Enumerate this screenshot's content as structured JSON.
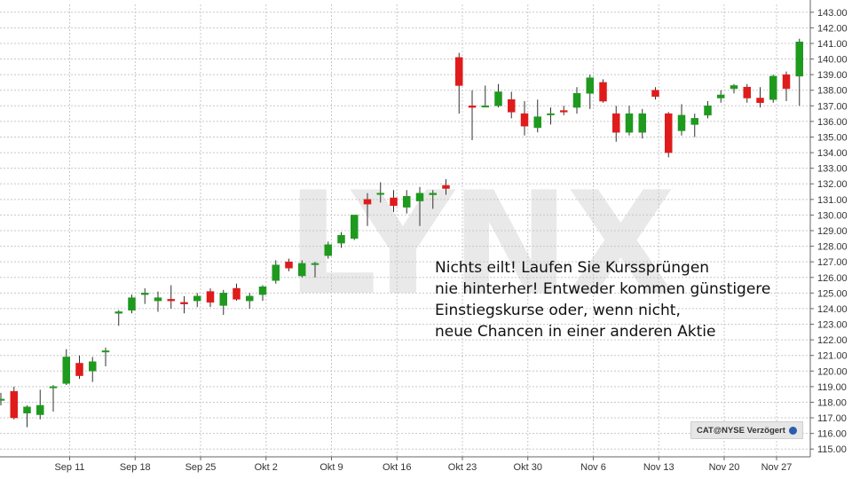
{
  "watermark": "LYNX",
  "annotation": {
    "lines": [
      "Nichts eilt! Laufen Sie Kurssprüngen",
      "nie hinterher! Entweder kommen günstigere",
      "Einstiegskurse oder, wenn nicht,",
      "neue Chancen in einer anderen Aktie"
    ]
  },
  "source_label": "CAT@NYSE Verzögert",
  "colors": {
    "up": "#1e9a1e",
    "down": "#e01b1b",
    "grid": "#c8c8c8",
    "axis": "#666666"
  },
  "chart_data": {
    "type": "candlestick",
    "ylim": [
      114.5,
      143.5
    ],
    "y_ticks": [
      "115.00",
      "116.00",
      "117.00",
      "118.00",
      "119.00",
      "120.00",
      "121.00",
      "122.00",
      "123.00",
      "124.00",
      "125.00",
      "126.00",
      "127.00",
      "128.00",
      "129.00",
      "130.00",
      "131.00",
      "132.00",
      "133.00",
      "134.00",
      "135.00",
      "136.00",
      "137.00",
      "138.00",
      "139.00",
      "140.00",
      "141.00",
      "142.00",
      "143.00"
    ],
    "x_ticks": [
      {
        "label": "Sep 11",
        "index": 2
      },
      {
        "label": "Sep 18",
        "index": 7
      },
      {
        "label": "Sep 25",
        "index": 12
      },
      {
        "label": "Okt 2",
        "index": 17
      },
      {
        "label": "Okt 9",
        "index": 22
      },
      {
        "label": "Okt 16",
        "index": 27
      },
      {
        "label": "Okt 23",
        "index": 32
      },
      {
        "label": "Okt 30",
        "index": 37
      },
      {
        "label": "Nov 6",
        "index": 42
      },
      {
        "label": "Nov 13",
        "index": 47
      },
      {
        "label": "Nov 20",
        "index": 52
      },
      {
        "label": "Nov 27",
        "index": 56
      }
    ],
    "candles": [
      {
        "o": 118.2,
        "h": 118.6,
        "l": 117.8,
        "c": 118.2
      },
      {
        "o": 118.7,
        "h": 119.0,
        "l": 116.9,
        "c": 117.0
      },
      {
        "o": 117.3,
        "h": 117.8,
        "l": 116.4,
        "c": 117.7
      },
      {
        "o": 117.2,
        "h": 118.8,
        "l": 116.9,
        "c": 117.8
      },
      {
        "o": 119.0,
        "h": 119.1,
        "l": 117.4,
        "c": 119.0
      },
      {
        "o": 119.2,
        "h": 121.4,
        "l": 119.1,
        "c": 120.9
      },
      {
        "o": 120.5,
        "h": 121.0,
        "l": 119.5,
        "c": 119.7
      },
      {
        "o": 120.0,
        "h": 120.9,
        "l": 119.3,
        "c": 120.6
      },
      {
        "o": 121.3,
        "h": 121.5,
        "l": 120.3,
        "c": 121.3
      },
      {
        "o": 123.7,
        "h": 123.9,
        "l": 122.9,
        "c": 123.8
      },
      {
        "o": 123.9,
        "h": 124.9,
        "l": 123.7,
        "c": 124.7
      },
      {
        "o": 124.9,
        "h": 125.3,
        "l": 124.3,
        "c": 125.0
      },
      {
        "o": 124.5,
        "h": 125.1,
        "l": 123.8,
        "c": 124.7
      },
      {
        "o": 124.6,
        "h": 125.5,
        "l": 124.0,
        "c": 124.5
      },
      {
        "o": 124.4,
        "h": 124.8,
        "l": 123.7,
        "c": 124.3
      },
      {
        "o": 124.5,
        "h": 125.0,
        "l": 124.1,
        "c": 124.8
      },
      {
        "o": 125.1,
        "h": 125.3,
        "l": 124.1,
        "c": 124.4
      },
      {
        "o": 124.2,
        "h": 125.2,
        "l": 123.6,
        "c": 125.0
      },
      {
        "o": 125.3,
        "h": 125.6,
        "l": 124.5,
        "c": 124.6
      },
      {
        "o": 124.5,
        "h": 125.0,
        "l": 124.0,
        "c": 124.8
      },
      {
        "o": 124.9,
        "h": 125.5,
        "l": 124.5,
        "c": 125.4
      },
      {
        "o": 125.8,
        "h": 127.1,
        "l": 125.6,
        "c": 126.8
      },
      {
        "o": 127.0,
        "h": 127.2,
        "l": 126.4,
        "c": 126.6
      },
      {
        "o": 126.1,
        "h": 127.1,
        "l": 126.0,
        "c": 126.9
      },
      {
        "o": 126.9,
        "h": 127.0,
        "l": 126.0,
        "c": 126.9
      },
      {
        "o": 127.4,
        "h": 128.3,
        "l": 127.2,
        "c": 128.1
      },
      {
        "o": 128.2,
        "h": 128.9,
        "l": 127.9,
        "c": 128.7
      },
      {
        "o": 128.5,
        "h": 130.0,
        "l": 128.4,
        "c": 130.0
      },
      {
        "o": 131.0,
        "h": 131.4,
        "l": 129.3,
        "c": 130.7
      },
      {
        "o": 131.4,
        "h": 132.1,
        "l": 130.8,
        "c": 131.4
      },
      {
        "o": 131.1,
        "h": 131.6,
        "l": 130.2,
        "c": 130.6
      },
      {
        "o": 130.5,
        "h": 131.6,
        "l": 130.1,
        "c": 131.2
      },
      {
        "o": 130.9,
        "h": 131.8,
        "l": 129.3,
        "c": 131.4
      },
      {
        "o": 131.3,
        "h": 131.6,
        "l": 130.4,
        "c": 131.4
      },
      {
        "o": 131.9,
        "h": 132.3,
        "l": 131.3,
        "c": 131.7
      },
      {
        "o": 140.1,
        "h": 140.4,
        "l": 136.5,
        "c": 138.3
      },
      {
        "o": 137.0,
        "h": 138.0,
        "l": 134.8,
        "c": 136.9
      },
      {
        "o": 137.0,
        "h": 138.3,
        "l": 137.0,
        "c": 137.0
      },
      {
        "o": 137.0,
        "h": 138.4,
        "l": 136.9,
        "c": 137.9
      },
      {
        "o": 137.4,
        "h": 137.9,
        "l": 136.2,
        "c": 136.6
      },
      {
        "o": 136.5,
        "h": 137.3,
        "l": 135.1,
        "c": 135.7
      },
      {
        "o": 135.6,
        "h": 137.4,
        "l": 135.3,
        "c": 136.3
      },
      {
        "o": 136.5,
        "h": 136.9,
        "l": 135.8,
        "c": 136.5
      },
      {
        "o": 136.7,
        "h": 137.0,
        "l": 136.4,
        "c": 136.6
      },
      {
        "o": 136.9,
        "h": 138.2,
        "l": 136.5,
        "c": 137.8
      },
      {
        "o": 137.8,
        "h": 139.0,
        "l": 136.8,
        "c": 138.8
      },
      {
        "o": 138.5,
        "h": 138.7,
        "l": 137.2,
        "c": 137.3
      },
      {
        "o": 136.5,
        "h": 137.0,
        "l": 134.7,
        "c": 135.3
      },
      {
        "o": 135.3,
        "h": 137.0,
        "l": 135.1,
        "c": 136.5
      },
      {
        "o": 135.3,
        "h": 136.8,
        "l": 134.9,
        "c": 136.5
      },
      {
        "o": 138.0,
        "h": 138.2,
        "l": 137.4,
        "c": 137.6
      },
      {
        "o": 136.5,
        "h": 136.6,
        "l": 133.7,
        "c": 134.0
      },
      {
        "o": 135.4,
        "h": 137.1,
        "l": 135.1,
        "c": 136.4
      },
      {
        "o": 135.8,
        "h": 136.5,
        "l": 135.0,
        "c": 136.2
      },
      {
        "o": 136.4,
        "h": 137.3,
        "l": 136.2,
        "c": 137.0
      },
      {
        "o": 137.5,
        "h": 138.0,
        "l": 137.2,
        "c": 137.7
      },
      {
        "o": 138.1,
        "h": 138.4,
        "l": 137.8,
        "c": 138.3
      },
      {
        "o": 138.2,
        "h": 138.4,
        "l": 137.2,
        "c": 137.5
      },
      {
        "o": 137.5,
        "h": 138.2,
        "l": 136.9,
        "c": 137.2
      },
      {
        "o": 137.4,
        "h": 139.0,
        "l": 137.2,
        "c": 138.9
      },
      {
        "o": 139.0,
        "h": 139.2,
        "l": 137.3,
        "c": 138.1
      },
      {
        "o": 138.9,
        "h": 141.3,
        "l": 137.0,
        "c": 141.1
      }
    ]
  }
}
